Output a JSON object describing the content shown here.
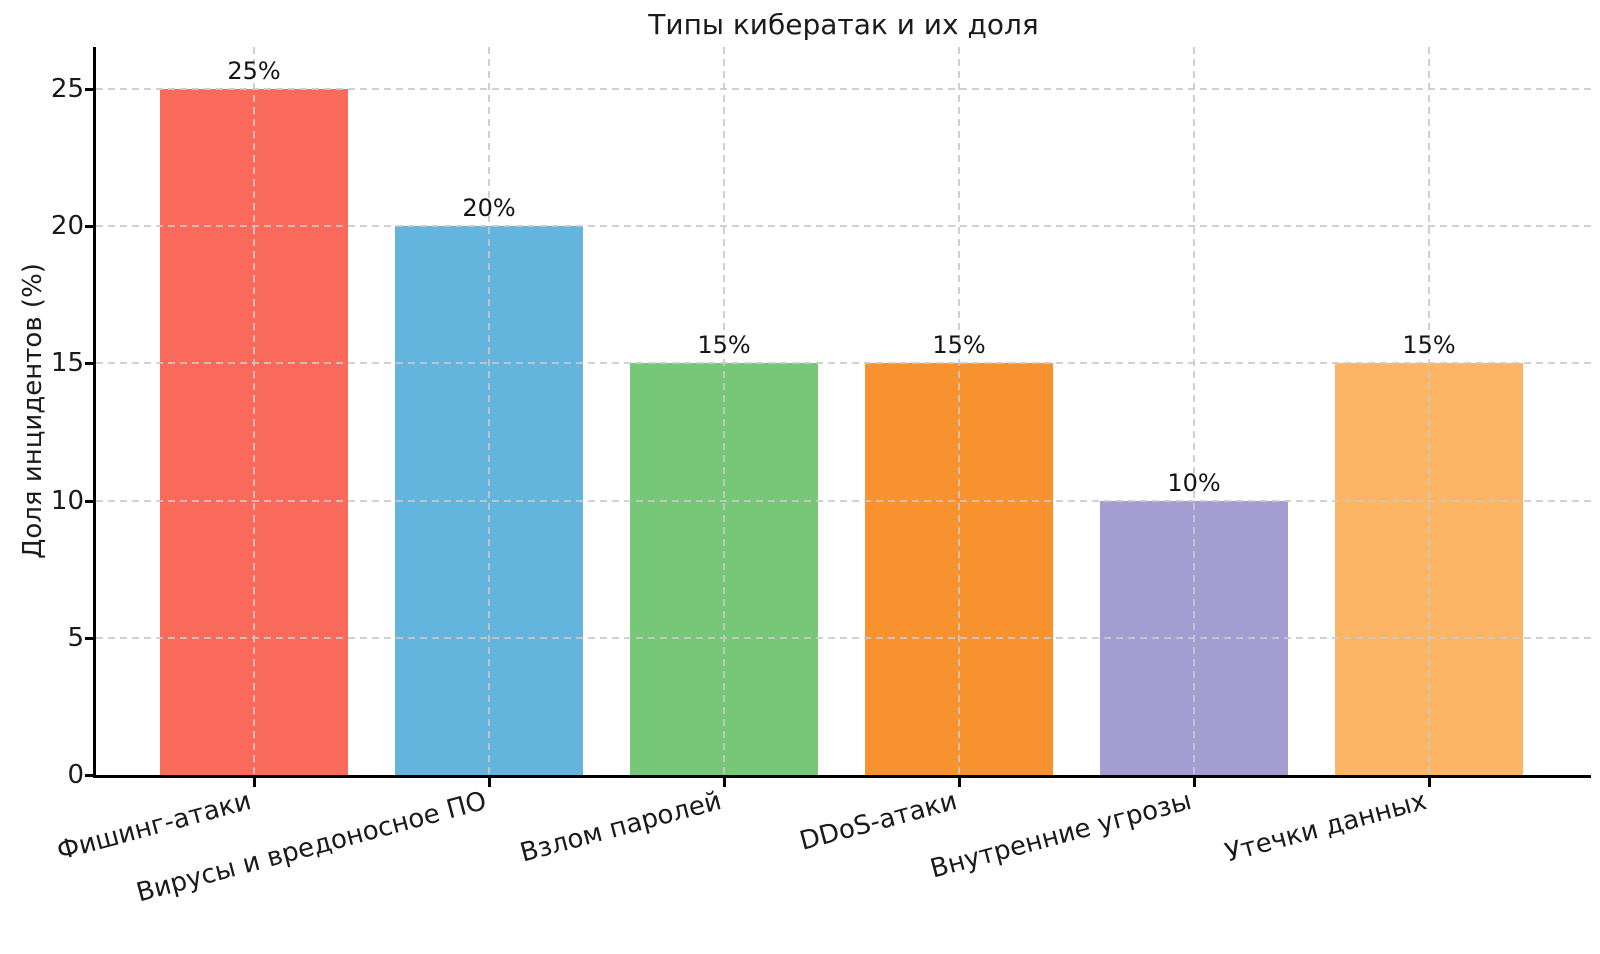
{
  "chart_data": {
    "type": "bar",
    "title": "Типы кибератак и их доля",
    "ylabel": "Доля инцидентов (%)",
    "xlabel": "",
    "categories": [
      "Фишинг-атаки",
      "Вирусы и вредоносное ПО",
      "Взлом паролей",
      "DDoS-атаки",
      "Внутренние угрозы",
      "Утечки данных"
    ],
    "values": [
      25,
      20,
      15,
      15,
      10,
      15
    ],
    "bar_labels": [
      "25%",
      "20%",
      "15%",
      "15%",
      "10%",
      "15%"
    ],
    "bar_colors": [
      "#FA6A5B",
      "#64B5DE",
      "#76C777",
      "#F8922E",
      "#A49DD1",
      "#FCB465"
    ],
    "yticks": [
      0,
      5,
      10,
      15,
      20,
      25
    ],
    "ylim": [
      0,
      26.5
    ],
    "grid": "dashed",
    "grid_color": "#CCCCCC",
    "legend": "none",
    "xtick_rotation_deg": 15
  }
}
